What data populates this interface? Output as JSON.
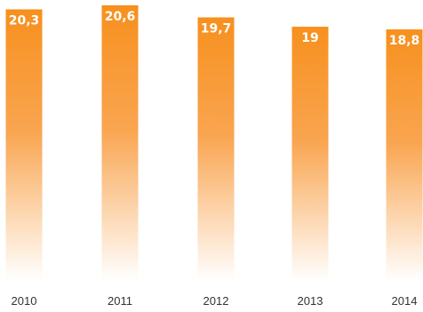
{
  "chart_data": {
    "type": "bar",
    "categories": [
      "2010",
      "2011",
      "2012",
      "2013",
      "2014"
    ],
    "values": [
      20.3,
      20.6,
      19.7,
      19,
      18.8
    ],
    "value_labels": [
      "20,3",
      "20,6",
      "19,7",
      "19",
      "18,8"
    ],
    "title": "",
    "xlabel": "",
    "ylabel": "",
    "ylim": [
      0,
      20.6
    ],
    "grid": false,
    "legend": "none",
    "colors": {
      "bar_top": "#f7901e",
      "bar_bottom": "#ffffff",
      "label_text": "#ffffff",
      "tick_text": "#333333"
    }
  }
}
